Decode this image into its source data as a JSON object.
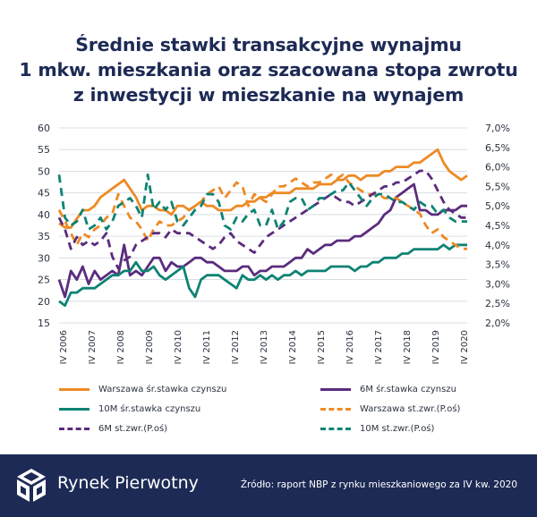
{
  "title_lines": [
    "Średnie stawki transakcyjne wynajmu",
    "1 mkw. mieszkania oraz szacowana stopa zwrotu",
    "z inwestycji w mieszkanie na wynajem"
  ],
  "chart_data": {
    "type": "line",
    "x_labels": [
      "IV 2006",
      "IV 2007",
      "IV 2008",
      "IV 2009",
      "IV 2010",
      "IV 2011",
      "IV 2012",
      "IV 2013",
      "IV 2014",
      "IV 2015",
      "IV 2016",
      "IV 2017",
      "IV 2018",
      "IV 2019",
      "IV 2020"
    ],
    "y_left": {
      "ticks": [
        "15",
        "20",
        "25",
        "30",
        "35",
        "40",
        "45",
        "50",
        "55",
        "60"
      ],
      "min": 15,
      "max": 60
    },
    "y_right": {
      "ticks": [
        "2,0%",
        "2,5%",
        "3,0%",
        "3,5%",
        "4,0%",
        "4,5%",
        "5,0%",
        "5,5%",
        "6,0%",
        "6,5%",
        "7,0%"
      ],
      "min": 2.0,
      "max": 7.0
    },
    "grid": "horizontal",
    "legend_position": "bottom",
    "series": [
      {
        "name": "Warszawa śr.stawka czynszu",
        "axis": "left",
        "color": "#ee8a25",
        "dashed": false,
        "values": [
          38,
          37,
          37,
          39,
          41,
          41,
          42,
          44,
          45,
          46,
          47,
          48,
          46,
          44,
          41,
          42,
          42,
          41,
          41,
          40,
          42,
          42,
          41,
          42,
          43,
          42,
          42,
          41,
          41,
          41,
          42,
          42,
          43,
          43,
          44,
          44,
          45,
          45,
          45,
          45,
          46,
          46,
          46,
          46,
          47,
          47,
          47,
          48,
          48,
          49,
          49,
          48,
          49,
          49,
          49,
          50,
          50,
          51,
          51,
          51,
          52,
          52,
          53,
          54,
          55,
          52,
          50,
          49,
          48,
          49
        ]
      },
      {
        "name": "6M śr.stawka czynszu",
        "axis": "left",
        "color": "#5b2c7e",
        "dashed": false,
        "values": [
          25,
          21,
          27,
          25,
          28,
          24,
          27,
          25,
          26,
          27,
          26,
          33,
          26,
          27,
          26,
          28,
          30,
          30,
          27,
          29,
          28,
          28,
          29,
          30,
          30,
          29,
          29,
          28,
          27,
          27,
          27,
          28,
          28,
          26,
          27,
          27,
          28,
          28,
          28,
          29,
          30,
          30,
          32,
          31,
          32,
          33,
          33,
          34,
          34,
          34,
          35,
          35,
          36,
          37,
          38,
          40,
          41,
          44,
          45,
          46,
          47,
          41,
          41,
          40,
          40,
          41,
          41,
          41,
          42,
          42
        ]
      },
      {
        "name": "10M śr.stawka czynszu",
        "axis": "left",
        "color": "#0e8374",
        "dashed": false,
        "values": [
          20,
          19,
          22,
          22,
          23,
          23,
          23,
          24,
          25,
          26,
          26,
          27,
          27,
          29,
          27,
          27,
          28,
          26,
          25,
          26,
          27,
          28,
          23,
          21,
          25,
          26,
          26,
          26,
          25,
          24,
          23,
          26,
          25,
          25,
          26,
          25,
          26,
          25,
          26,
          26,
          27,
          26,
          27,
          27,
          27,
          27,
          28,
          28,
          28,
          28,
          27,
          28,
          28,
          29,
          29,
          30,
          30,
          30,
          31,
          31,
          32,
          32,
          32,
          32,
          32,
          33,
          32,
          33,
          33,
          33
        ]
      },
      {
        "name": "Warszawa st.zwr.(P.oś)",
        "axis": "right",
        "color": "#ee8a25",
        "dashed": true,
        "values": [
          4.9,
          4.6,
          4.3,
          4.0,
          4.3,
          4.2,
          4.4,
          4.5,
          4.7,
          4.8,
          5.3,
          5.0,
          4.7,
          4.6,
          4.4,
          4.1,
          4.4,
          4.6,
          4.5,
          4.5,
          4.6,
          4.7,
          4.9,
          5.0,
          5.1,
          5.3,
          5.4,
          5.5,
          5.2,
          5.4,
          5.6,
          5.5,
          5.0,
          5.3,
          5.2,
          5.1,
          5.3,
          5.5,
          5.5,
          5.6,
          5.7,
          5.6,
          5.5,
          5.6,
          5.6,
          5.7,
          5.8,
          5.7,
          5.8,
          5.6,
          5.5,
          5.4,
          5.3,
          5.3,
          5.3,
          5.2,
          5.2,
          5.2,
          5.1,
          5.0,
          4.9,
          4.8,
          4.5,
          4.3,
          4.4,
          4.2,
          4.1,
          4.0,
          3.9,
          3.9
        ]
      },
      {
        "name": "6M st.zwr.(P.oś)",
        "axis": "right",
        "color": "#5b2c7e",
        "dashed": true,
        "values": [
          4.7,
          4.4,
          3.9,
          4.2,
          4.0,
          4.1,
          4.0,
          4.1,
          4.3,
          3.7,
          3.4,
          3.6,
          3.7,
          4.0,
          4.1,
          4.2,
          4.3,
          4.3,
          4.2,
          4.4,
          4.3,
          4.3,
          4.3,
          4.2,
          4.1,
          4.0,
          3.9,
          4.0,
          4.2,
          4.3,
          4.1,
          4.0,
          3.9,
          3.8,
          4.0,
          4.2,
          4.3,
          4.4,
          4.5,
          4.6,
          4.7,
          4.8,
          4.9,
          5.0,
          5.1,
          5.2,
          5.3,
          5.2,
          5.1,
          5.1,
          5.0,
          5.1,
          5.2,
          5.3,
          5.4,
          5.5,
          5.5,
          5.6,
          5.6,
          5.7,
          5.8,
          5.9,
          5.9,
          5.7,
          5.4,
          5.1,
          4.9,
          4.8,
          4.7,
          4.7
        ]
      },
      {
        "name": "10M st.zwr.(P.oś)",
        "axis": "right",
        "color": "#0e8374",
        "dashed": true,
        "values": [
          5.8,
          4.7,
          4.5,
          4.6,
          4.9,
          4.4,
          4.5,
          4.7,
          4.4,
          4.6,
          5.0,
          5.1,
          5.2,
          5.0,
          4.7,
          5.8,
          4.9,
          5.1,
          4.9,
          5.1,
          4.6,
          4.5,
          4.7,
          4.9,
          5.0,
          5.3,
          5.3,
          5.1,
          4.5,
          4.4,
          4.7,
          4.6,
          4.8,
          4.9,
          4.5,
          4.5,
          4.9,
          4.4,
          4.6,
          5.1,
          5.2,
          5.2,
          4.9,
          5.0,
          5.2,
          5.2,
          5.3,
          5.4,
          5.4,
          5.6,
          5.4,
          5.2,
          5.0,
          5.2,
          5.3,
          5.3,
          5.2,
          5.1,
          5.1,
          5.0,
          4.9,
          5.1,
          5.0,
          5.0,
          4.8,
          4.9,
          4.7,
          4.6,
          4.6,
          4.6
        ]
      }
    ]
  },
  "legend": [
    {
      "label": "Warszawa śr.stawka czynszu",
      "color": "#ee8a25",
      "style": "solid"
    },
    {
      "label": "6M śr.stawka czynszu",
      "color": "#5b2c7e",
      "style": "solid"
    },
    {
      "label": "10M śr.stawka czynszu",
      "color": "#0e8374",
      "style": "solid"
    },
    {
      "label": "Warszawa st.zwr.(P.oś)",
      "color": "#ee8a25",
      "style": "dashed"
    },
    {
      "label": "6M st.zwr.(P.oś)",
      "color": "#5b2c7e",
      "style": "dashed"
    },
    {
      "label": "10M st.zwr.(P.oś)",
      "color": "#0e8374",
      "style": "dashed"
    }
  ],
  "footer": {
    "brand": "Rynek Pierwotny",
    "logo_icon": "cube-logo-icon",
    "source": "Źródło: raport NBP z rynku mieszkaniowego za IV kw. 2020",
    "background": "#1d2a55"
  }
}
